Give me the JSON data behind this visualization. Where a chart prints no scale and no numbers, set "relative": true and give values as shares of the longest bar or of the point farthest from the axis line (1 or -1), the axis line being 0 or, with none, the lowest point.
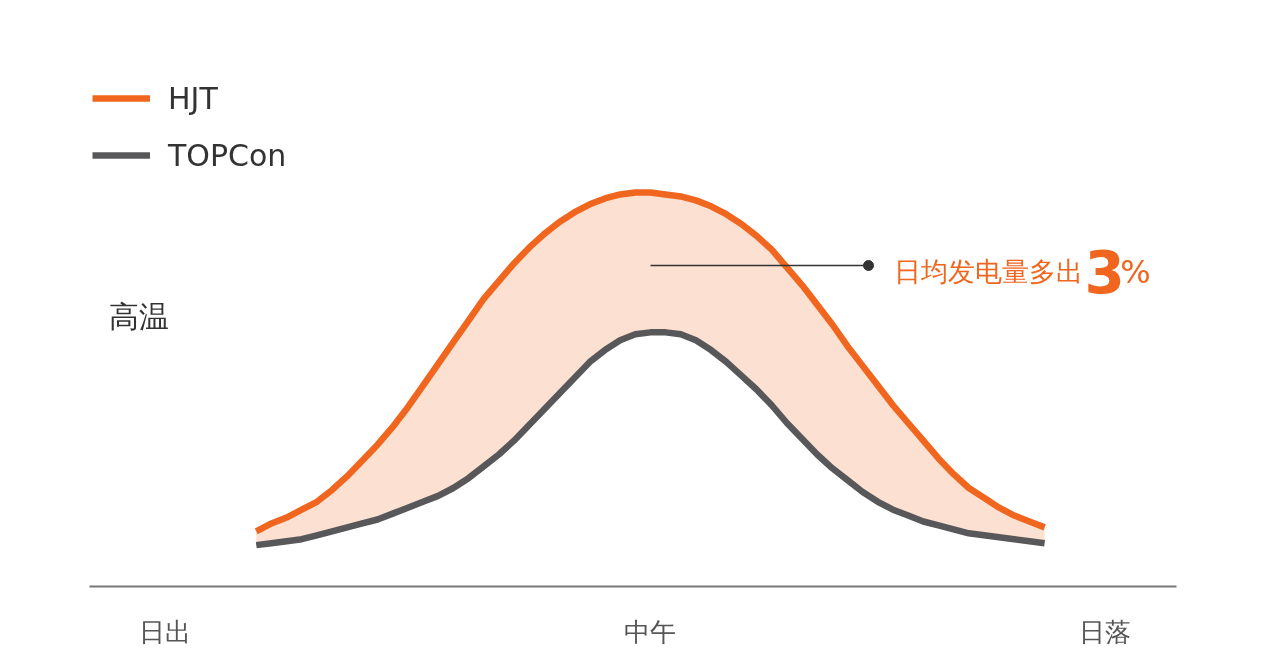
{
  "chart_data": {
    "type": "line",
    "relative": true,
    "categories": [
      "日出",
      null,
      null,
      null,
      null,
      null,
      null,
      null,
      null,
      null,
      null,
      null,
      null,
      null,
      null,
      null,
      null,
      null,
      null,
      null,
      null,
      null,
      null,
      null,
      null,
      null,
      null,
      null,
      null,
      null,
      null,
      null,
      "中午",
      null,
      null,
      null,
      null,
      null,
      null,
      null,
      null,
      null,
      null,
      null,
      null,
      null,
      null,
      null,
      null,
      null,
      null,
      null,
      null,
      null,
      null,
      null,
      null,
      null,
      null,
      null,
      null,
      null,
      "日落"
    ],
    "series": [
      {
        "name": "HJT",
        "color": "#f0661e",
        "values": [
          null,
          null,
          null,
          null,
          null,
          null,
          0.14,
          0.16,
          0.175,
          0.195,
          0.215,
          0.245,
          0.28,
          0.32,
          0.36,
          0.405,
          0.455,
          0.51,
          0.565,
          0.62,
          0.675,
          0.73,
          0.775,
          0.82,
          0.86,
          0.895,
          0.925,
          0.95,
          0.97,
          0.985,
          0.995,
          1,
          1,
          0.995,
          0.99,
          0.98,
          0.965,
          0.945,
          0.92,
          0.89,
          0.855,
          0.81,
          0.765,
          0.715,
          0.665,
          0.61,
          0.56,
          0.51,
          0.46,
          0.415,
          0.37,
          0.325,
          0.285,
          0.25,
          0.225,
          0.2,
          0.18,
          0.165,
          0.15,
          null,
          null,
          null,
          null
        ],
        "lower": [
          null,
          null,
          null,
          null,
          null,
          null,
          0.105,
          0.11,
          0.115,
          0.12,
          0.13,
          0.14,
          0.15,
          0.16,
          0.17,
          0.185,
          0.2,
          0.215,
          0.23,
          0.25,
          0.275,
          0.305,
          0.335,
          0.37,
          0.41,
          0.45,
          0.49,
          0.53,
          0.57,
          0.6,
          0.625,
          0.64,
          0.645,
          0.645,
          0.64,
          0.625,
          0.6,
          0.57,
          0.535,
          0.5,
          0.46,
          0.415,
          0.375,
          0.335,
          0.3,
          0.27,
          0.24,
          0.215,
          0.195,
          0.18,
          0.165,
          0.155,
          0.145,
          0.135,
          0.13,
          0.125,
          0.12,
          0.115,
          0.11,
          null,
          null,
          null,
          null
        ],
        "upper": [
          null,
          null,
          null,
          null,
          null,
          null,
          0.14,
          0.16,
          0.175,
          0.195,
          0.215,
          0.245,
          0.28,
          0.32,
          0.36,
          0.405,
          0.455,
          0.51,
          0.565,
          0.62,
          0.675,
          0.73,
          0.775,
          0.82,
          0.86,
          0.895,
          0.925,
          0.95,
          0.97,
          0.985,
          0.995,
          1,
          1,
          0.995,
          0.99,
          0.98,
          0.965,
          0.945,
          0.92,
          0.89,
          0.855,
          0.81,
          0.765,
          0.715,
          0.665,
          0.61,
          0.56,
          0.51,
          0.46,
          0.415,
          0.37,
          0.325,
          0.285,
          0.25,
          0.225,
          0.2,
          0.18,
          0.165,
          0.15,
          null,
          null,
          null,
          null
        ]
      },
      {
        "name": "TOPCon",
        "color": "#58585a",
        "values": [
          null,
          null,
          null,
          null,
          null,
          null,
          0.105,
          0.11,
          0.115,
          0.12,
          0.13,
          0.14,
          0.15,
          0.16,
          0.17,
          0.185,
          0.2,
          0.215,
          0.23,
          0.25,
          0.275,
          0.305,
          0.335,
          0.37,
          0.41,
          0.45,
          0.49,
          0.53,
          0.57,
          0.6,
          0.625,
          0.64,
          0.645,
          0.645,
          0.64,
          0.625,
          0.6,
          0.57,
          0.535,
          0.5,
          0.46,
          0.415,
          0.375,
          0.335,
          0.3,
          0.27,
          0.24,
          0.215,
          0.195,
          0.18,
          0.165,
          0.155,
          0.145,
          0.135,
          0.13,
          0.125,
          0.12,
          0.115,
          0.11,
          null,
          null,
          null,
          null
        ]
      }
    ],
    "annotations": [
      "高温",
      "日均发电量多出3%"
    ],
    "legend": "top left",
    "line_style": "solid"
  }
}
